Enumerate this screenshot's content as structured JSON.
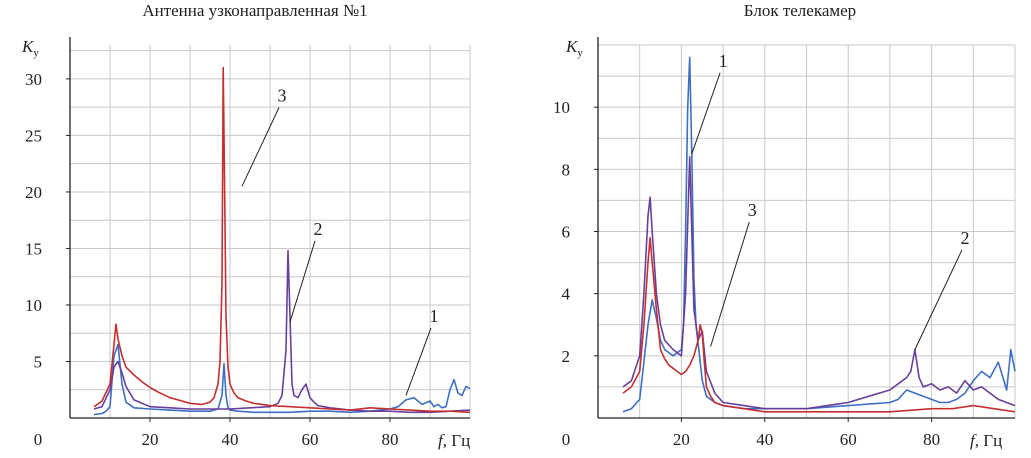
{
  "chart_data": [
    {
      "type": "line",
      "title": "Антенна узконаправленная №1",
      "ylabel": "K",
      "ylabel_sub": "у",
      "xlabel_var": "f",
      "xlabel_unit": ", Гц",
      "xlim": [
        0,
        100
      ],
      "ylim": [
        0,
        33
      ],
      "x_ticks": [
        0,
        20,
        40,
        60,
        80
      ],
      "y_ticks": [
        5,
        10,
        15,
        20,
        25,
        30
      ],
      "grid": true,
      "series": [
        {
          "name": "1",
          "color": "#3e6fc4",
          "x": [
            6,
            8,
            9,
            10,
            11,
            12,
            13,
            14,
            16,
            20,
            25,
            30,
            35,
            37,
            38,
            38.5,
            39,
            39.5,
            40,
            42,
            46,
            50,
            55,
            60,
            65,
            70,
            75,
            80,
            82,
            84,
            86,
            88,
            90,
            91,
            92,
            93,
            94,
            95,
            96,
            97,
            98,
            99,
            100
          ],
          "y": [
            0.3,
            0.4,
            0.6,
            1.0,
            5.5,
            6.5,
            3.0,
            1.4,
            0.9,
            0.8,
            0.7,
            0.6,
            0.6,
            0.8,
            2.0,
            4.8,
            2.0,
            0.9,
            0.7,
            0.6,
            0.5,
            0.5,
            0.5,
            0.6,
            0.6,
            0.5,
            0.6,
            0.8,
            1.0,
            1.6,
            1.8,
            1.2,
            1.5,
            1.0,
            1.2,
            0.9,
            1.0,
            2.5,
            3.4,
            2.2,
            2.0,
            2.8,
            2.6
          ]
        },
        {
          "name": "2",
          "color": "#6a3f9a",
          "x": [
            6,
            8,
            10,
            11,
            12,
            13,
            14,
            16,
            20,
            25,
            30,
            35,
            40,
            45,
            50,
            52,
            53,
            54,
            54.5,
            55,
            55.5,
            56,
            57,
            58,
            59,
            60,
            61,
            62,
            65,
            70,
            75,
            80,
            85,
            90,
            95,
            100
          ],
          "y": [
            0.8,
            1.0,
            2.5,
            4.5,
            5.0,
            4.0,
            2.8,
            1.6,
            1.0,
            0.9,
            0.8,
            0.8,
            0.8,
            0.9,
            1.0,
            1.3,
            2.0,
            6.0,
            14.8,
            9.0,
            3.0,
            2.0,
            1.8,
            2.5,
            3.0,
            1.8,
            1.4,
            1.1,
            0.9,
            0.7,
            0.6,
            0.6,
            0.5,
            0.5,
            0.6,
            0.7
          ]
        },
        {
          "name": "3",
          "color": "#c43030",
          "x": [
            6,
            8,
            10,
            11,
            11.5,
            12,
            13,
            14,
            16,
            18,
            20,
            22,
            25,
            28,
            30,
            33,
            35,
            36,
            37,
            37.5,
            38,
            38.3,
            38.6,
            39,
            39.5,
            40,
            41,
            42,
            44,
            46,
            48,
            50,
            55,
            60,
            65,
            70,
            75,
            80,
            85,
            90,
            95,
            100
          ],
          "y": [
            1.0,
            1.5,
            3.0,
            6.5,
            8.3,
            7.0,
            5.5,
            4.5,
            3.8,
            3.2,
            2.7,
            2.3,
            1.8,
            1.5,
            1.3,
            1.2,
            1.4,
            1.8,
            3.0,
            5.0,
            12.0,
            31.0,
            22.0,
            9.0,
            4.5,
            3.0,
            2.2,
            1.8,
            1.5,
            1.3,
            1.2,
            1.1,
            1.0,
            0.9,
            0.8,
            0.7,
            0.9,
            0.8,
            0.7,
            0.6,
            0.6,
            0.5
          ]
        }
      ],
      "callouts": [
        {
          "label": "1",
          "x": 91,
          "y": 8.5,
          "tx": 84,
          "ty": 2.0
        },
        {
          "label": "2",
          "x": 62,
          "y": 16.2,
          "tx": 55,
          "ty": 8.5
        },
        {
          "label": "3",
          "x": 53,
          "y": 28.0,
          "tx": 43,
          "ty": 20.5
        }
      ]
    },
    {
      "type": "line",
      "title": "Блок телекамер",
      "ylabel": "K",
      "ylabel_sub": "у",
      "xlabel_var": "f",
      "xlabel_unit": ", Гц",
      "xlim": [
        0,
        100
      ],
      "ylim": [
        0,
        12
      ],
      "x_ticks": [
        0,
        20,
        40,
        60,
        80
      ],
      "y_ticks": [
        2,
        4,
        6,
        8,
        10
      ],
      "grid": true,
      "series": [
        {
          "name": "1",
          "color": "#3e6fc4",
          "x": [
            6,
            8,
            10,
            11,
            12,
            13,
            14,
            15,
            16,
            18,
            20,
            20.5,
            21,
            21.5,
            22,
            22.5,
            23,
            23.5,
            24,
            25,
            26,
            28,
            30,
            35,
            40,
            50,
            60,
            70,
            72,
            74,
            76,
            78,
            80,
            82,
            84,
            86,
            88,
            90,
            92,
            94,
            96,
            98,
            99,
            100
          ],
          "y": [
            0.2,
            0.3,
            0.6,
            1.8,
            3.0,
            3.8,
            3.2,
            2.5,
            2.2,
            2.0,
            2.2,
            3.0,
            6.0,
            10.0,
            11.6,
            8.5,
            4.5,
            3.0,
            2.4,
            1.2,
            0.7,
            0.5,
            0.4,
            0.3,
            0.3,
            0.3,
            0.4,
            0.5,
            0.6,
            0.9,
            0.8,
            0.7,
            0.6,
            0.5,
            0.5,
            0.6,
            0.8,
            1.2,
            1.5,
            1.3,
            1.8,
            0.9,
            2.2,
            1.5
          ]
        },
        {
          "name": "2",
          "color": "#6a3f9a",
          "x": [
            6,
            8,
            10,
            11,
            12,
            12.5,
            13,
            14,
            15,
            16,
            18,
            20,
            21,
            22,
            22.5,
            23,
            24,
            25,
            26,
            28,
            30,
            35,
            40,
            45,
            50,
            55,
            60,
            65,
            70,
            72,
            74,
            75,
            76,
            77,
            78,
            80,
            82,
            84,
            86,
            88,
            90,
            92,
            94,
            96,
            98,
            100
          ],
          "y": [
            1.0,
            1.2,
            2.0,
            4.0,
            6.5,
            7.1,
            6.0,
            4.0,
            3.0,
            2.5,
            2.2,
            2.0,
            4.0,
            8.4,
            6.0,
            3.5,
            2.5,
            2.8,
            1.5,
            0.8,
            0.5,
            0.4,
            0.3,
            0.3,
            0.3,
            0.4,
            0.5,
            0.7,
            0.9,
            1.1,
            1.3,
            1.5,
            2.2,
            1.3,
            1.0,
            1.1,
            0.9,
            1.0,
            0.8,
            1.2,
            0.9,
            1.0,
            0.8,
            0.6,
            0.5,
            0.4
          ]
        },
        {
          "name": "3",
          "color": "#c43030",
          "x": [
            6,
            8,
            10,
            11,
            12,
            12.5,
            13,
            14,
            15,
            16,
            17,
            18,
            19,
            20,
            21,
            22,
            23,
            24,
            24.5,
            25,
            25.5,
            26,
            27,
            28,
            30,
            35,
            40,
            50,
            60,
            70,
            80,
            85,
            90,
            95,
            100
          ],
          "y": [
            0.8,
            1.0,
            1.5,
            3.0,
            5.0,
            5.8,
            5.0,
            3.5,
            2.2,
            1.9,
            1.7,
            1.6,
            1.5,
            1.4,
            1.5,
            1.7,
            2.0,
            2.5,
            3.0,
            2.7,
            1.8,
            1.0,
            0.7,
            0.5,
            0.4,
            0.3,
            0.2,
            0.2,
            0.2,
            0.2,
            0.3,
            0.3,
            0.4,
            0.3,
            0.2
          ]
        }
      ],
      "callouts": [
        {
          "label": "1",
          "x": 30,
          "y": 11.3,
          "tx": 22.5,
          "ty": 8.5
        },
        {
          "label": "2",
          "x": 88,
          "y": 5.6,
          "tx": 76,
          "ty": 2.2
        },
        {
          "label": "3",
          "x": 37,
          "y": 6.5,
          "tx": 27,
          "ty": 2.3
        }
      ]
    }
  ]
}
